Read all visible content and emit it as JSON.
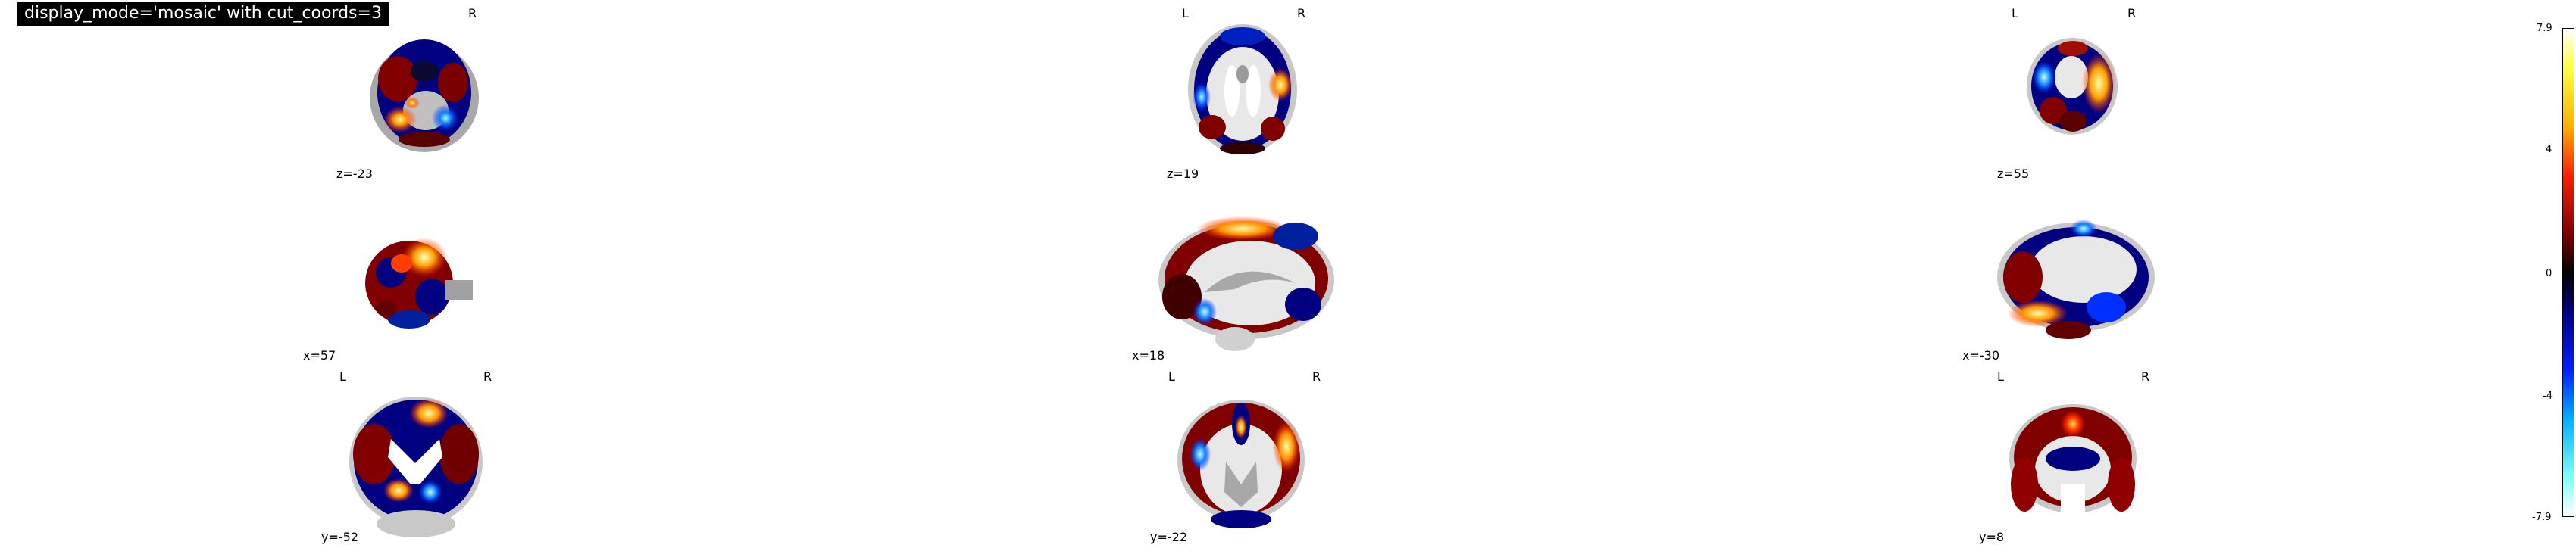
{
  "title": "display_mode='mosaic' with cut_coords=3",
  "orientation": {
    "left": "L",
    "right": "R"
  },
  "rows": [
    {
      "view": "axial",
      "slices": [
        {
          "label": "z=-23",
          "show_left": false,
          "show_right": true
        },
        {
          "label": "z=19",
          "show_left": true,
          "show_right": true
        },
        {
          "label": "z=55",
          "show_left": true,
          "show_right": true
        }
      ]
    },
    {
      "view": "sagittal",
      "slices": [
        {
          "label": "x=57"
        },
        {
          "label": "x=18"
        },
        {
          "label": "x=-30"
        }
      ]
    },
    {
      "view": "coronal",
      "slices": [
        {
          "label": "y=-52",
          "show_left": true,
          "show_right": true
        },
        {
          "label": "y=-22",
          "show_left": true,
          "show_right": true
        },
        {
          "label": "y=8",
          "show_left": true,
          "show_right": true
        }
      ]
    }
  ],
  "colorbar": {
    "vmax": "7.9",
    "vmin": "-7.9",
    "ticks": [
      "7.9",
      "4",
      "0",
      "-4",
      "-7.9"
    ],
    "colormap": [
      "#ffffff",
      "#ffff40",
      "#ffb000",
      "#ff2000",
      "#800000",
      "#000000",
      "#000080",
      "#0020ff",
      "#00b0ff",
      "#80ffff",
      "#ffffff"
    ]
  }
}
